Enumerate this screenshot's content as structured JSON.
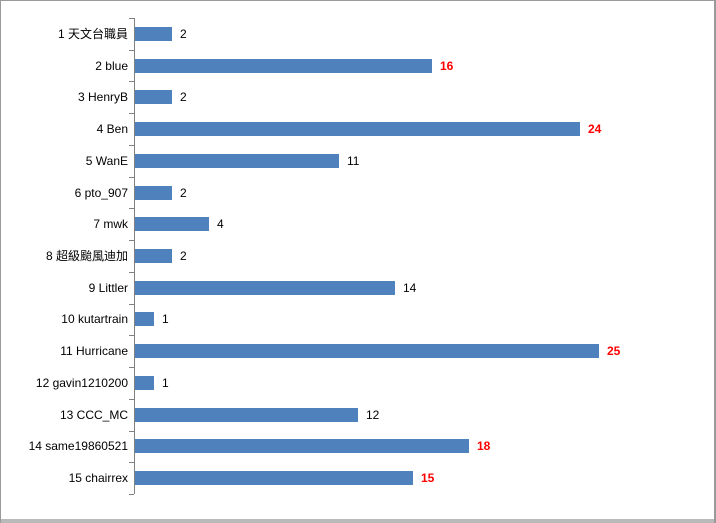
{
  "chart_data": {
    "type": "bar",
    "orientation": "horizontal",
    "title": "",
    "xlabel": "",
    "ylabel": "",
    "legend_position": "none",
    "grid": false,
    "xlim": [
      0,
      30
    ],
    "categories": [
      "1 天文台職員",
      "2 blue",
      "3 HenryB",
      "4 Ben",
      "5 WanE",
      "6 pto_907",
      "7 mwk",
      "8 超級颱風迪加",
      "9 Littler",
      "10 kutartrain",
      "11 Hurricane",
      "12 gavin1210200",
      "13 CCC_MC",
      "14 same19860521",
      "15 chairrex"
    ],
    "values": [
      2,
      16,
      2,
      24,
      11,
      2,
      4,
      2,
      14,
      1,
      25,
      1,
      12,
      18,
      15
    ],
    "value_label_highlighted": [
      false,
      true,
      false,
      true,
      false,
      false,
      false,
      false,
      false,
      false,
      true,
      false,
      false,
      true,
      true
    ],
    "colors": {
      "bar": "#4f81bd",
      "axis": "#808080",
      "value_label": "#000000",
      "value_label_highlight": "#ff0000",
      "category_label": "#000000",
      "frame_border": "#9a9a9a",
      "background": "#ffffff"
    }
  }
}
